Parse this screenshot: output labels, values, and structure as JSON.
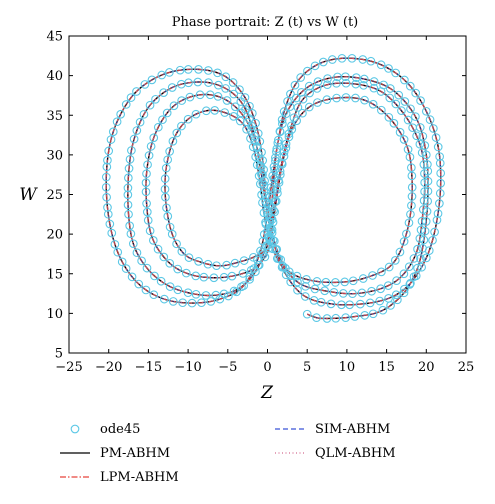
{
  "chart_data": {
    "type": "line",
    "title": "Phase portrait: Z (t) vs W (t)",
    "xlabel": "Z",
    "ylabel": "W",
    "xlim": [
      -25,
      25
    ],
    "ylim": [
      5,
      45
    ],
    "xticks": [
      -25,
      -20,
      -15,
      -10,
      -5,
      0,
      5,
      10,
      15,
      20,
      25
    ],
    "yticks": [
      5,
      10,
      15,
      20,
      25,
      30,
      35,
      40,
      45
    ],
    "grid": false,
    "legend_position": "bottom",
    "colors": {
      "ode45": "#5bc8e6",
      "pm": "#000000",
      "lpm": "#e8453c",
      "sim": "#3a55d8",
      "qlm": "#d46a8f"
    },
    "series": [
      {
        "name": "ode45",
        "style": "markers"
      },
      {
        "name": "PM-ABHM",
        "style": "solid"
      },
      {
        "name": "LPM-ABHM",
        "style": "dash-dot"
      },
      {
        "name": "SIM-ABHM",
        "style": "dashed"
      },
      {
        "name": "QLM-ABHM",
        "style": "dotted"
      }
    ],
    "trajectory": {
      "start": [
        5.0,
        9.9
      ],
      "points": [
        [
          5.0,
          9.9
        ],
        [
          6.5,
          9.4
        ],
        [
          9.0,
          9.4
        ],
        [
          11.0,
          9.6
        ],
        [
          13.5,
          10.0
        ],
        [
          15.5,
          11.0
        ],
        [
          17.5,
          13.0
        ],
        [
          19.0,
          16.0
        ],
        [
          19.8,
          20.0
        ],
        [
          20.2,
          25.0
        ],
        [
          20.0,
          30.0
        ],
        [
          18.8,
          34.5
        ],
        [
          16.0,
          38.0
        ],
        [
          12.5,
          39.5
        ],
        [
          8.5,
          39.8
        ],
        [
          5.0,
          38.5
        ],
        [
          2.5,
          35.5
        ],
        [
          1.3,
          31.5
        ],
        [
          0.8,
          27.0
        ],
        [
          0.5,
          23.0
        ],
        [
          0.2,
          19.5
        ],
        [
          -0.3,
          18.0
        ],
        [
          -1.5,
          17.2
        ],
        [
          -3.5,
          16.5
        ],
        [
          -6.0,
          16.0
        ],
        [
          -8.5,
          16.5
        ],
        [
          -10.5,
          17.5
        ],
        [
          -12.0,
          20.0
        ],
        [
          -12.8,
          24.0
        ],
        [
          -12.8,
          28.0
        ],
        [
          -11.8,
          32.0
        ],
        [
          -10.0,
          34.5
        ],
        [
          -7.5,
          35.6
        ],
        [
          -5.0,
          35.2
        ],
        [
          -3.0,
          33.8
        ],
        [
          -1.8,
          31.0
        ],
        [
          -1.0,
          27.0
        ],
        [
          -0.5,
          23.0
        ],
        [
          0.2,
          19.5
        ],
        [
          1.5,
          16.5
        ],
        [
          3.5,
          14.8
        ],
        [
          6.5,
          14.0
        ],
        [
          10.0,
          14.0
        ],
        [
          13.0,
          14.7
        ],
        [
          15.5,
          16.0
        ],
        [
          17.0,
          18.5
        ],
        [
          18.0,
          22.5
        ],
        [
          18.2,
          27.0
        ],
        [
          17.6,
          31.0
        ],
        [
          15.5,
          34.5
        ],
        [
          12.5,
          36.8
        ],
        [
          9.0,
          37.2
        ],
        [
          5.5,
          36.2
        ],
        [
          3.2,
          33.5
        ],
        [
          2.0,
          29.5
        ],
        [
          1.3,
          25.5
        ],
        [
          0.7,
          21.5
        ],
        [
          0.1,
          18.0
        ],
        [
          -1.5,
          15.8
        ],
        [
          -4.0,
          14.8
        ],
        [
          -7.0,
          14.5
        ],
        [
          -10.0,
          15.0
        ],
        [
          -12.5,
          16.5
        ],
        [
          -14.5,
          19.5
        ],
        [
          -15.2,
          23.5
        ],
        [
          -15.2,
          28.0
        ],
        [
          -14.2,
          32.5
        ],
        [
          -12.0,
          36.0
        ],
        [
          -9.0,
          37.5
        ],
        [
          -6.0,
          37.3
        ],
        [
          -3.5,
          35.5
        ],
        [
          -1.8,
          32.5
        ],
        [
          -0.8,
          28.5
        ],
        [
          -0.2,
          24.5
        ],
        [
          0.5,
          20.5
        ],
        [
          1.8,
          16.5
        ],
        [
          4.0,
          13.8
        ],
        [
          7.5,
          12.8
        ],
        [
          11.0,
          12.5
        ],
        [
          14.5,
          13.2
        ],
        [
          17.0,
          14.8
        ],
        [
          18.8,
          17.8
        ],
        [
          19.5,
          22.0
        ],
        [
          19.8,
          26.5
        ],
        [
          19.3,
          31.0
        ],
        [
          17.3,
          35.0
        ],
        [
          14.3,
          38.0
        ],
        [
          10.5,
          39.0
        ],
        [
          7.0,
          38.7
        ],
        [
          4.3,
          36.8
        ],
        [
          2.8,
          33.0
        ],
        [
          1.8,
          29.0
        ],
        [
          1.0,
          24.5
        ],
        [
          0.2,
          20.0
        ],
        [
          -1.2,
          15.8
        ],
        [
          -3.5,
          13.2
        ],
        [
          -6.5,
          12.3
        ],
        [
          -9.5,
          12.5
        ],
        [
          -12.5,
          13.5
        ],
        [
          -15.0,
          15.5
        ],
        [
          -16.8,
          18.5
        ],
        [
          -17.5,
          22.5
        ],
        [
          -17.5,
          27.5
        ],
        [
          -16.8,
          32.0
        ],
        [
          -15.0,
          36.0
        ],
        [
          -12.0,
          38.5
        ],
        [
          -8.5,
          39.2
        ],
        [
          -5.5,
          38.5
        ],
        [
          -3.2,
          36.5
        ],
        [
          -1.8,
          33.0
        ],
        [
          -1.0,
          29.0
        ],
        [
          -0.3,
          24.5
        ],
        [
          0.5,
          20.0
        ],
        [
          2.0,
          15.5
        ],
        [
          4.5,
          12.3
        ],
        [
          8.0,
          11.2
        ],
        [
          12.0,
          11.2
        ],
        [
          15.5,
          12.0
        ],
        [
          18.0,
          13.8
        ],
        [
          20.0,
          17.0
        ],
        [
          21.2,
          21.0
        ],
        [
          21.8,
          26.0
        ],
        [
          21.5,
          31.0
        ],
        [
          20.0,
          35.5
        ],
        [
          17.5,
          39.2
        ],
        [
          14.0,
          41.5
        ],
        [
          10.0,
          42.2
        ],
        [
          6.5,
          41.5
        ],
        [
          3.8,
          39.3
        ],
        [
          2.2,
          35.8
        ],
        [
          1.3,
          31.5
        ],
        [
          0.6,
          27.0
        ],
        [
          0.0,
          22.5
        ],
        [
          -1.0,
          17.5
        ],
        [
          -3.0,
          13.5
        ],
        [
          -6.0,
          11.8
        ],
        [
          -9.5,
          11.3
        ],
        [
          -13.0,
          11.8
        ],
        [
          -16.0,
          13.5
        ],
        [
          -18.3,
          16.5
        ],
        [
          -19.7,
          20.5
        ],
        [
          -20.3,
          25.5
        ],
        [
          -20.0,
          30.5
        ],
        [
          -18.8,
          34.5
        ],
        [
          -16.5,
          38.0
        ],
        [
          -13.0,
          40.2
        ],
        [
          -9.0,
          40.8
        ],
        [
          -5.5,
          40.0
        ],
        [
          -3.0,
          37.5
        ],
        [
          -1.5,
          34.0
        ],
        [
          -0.7,
          30.0
        ],
        [
          -0.3,
          26.0
        ]
      ]
    }
  }
}
